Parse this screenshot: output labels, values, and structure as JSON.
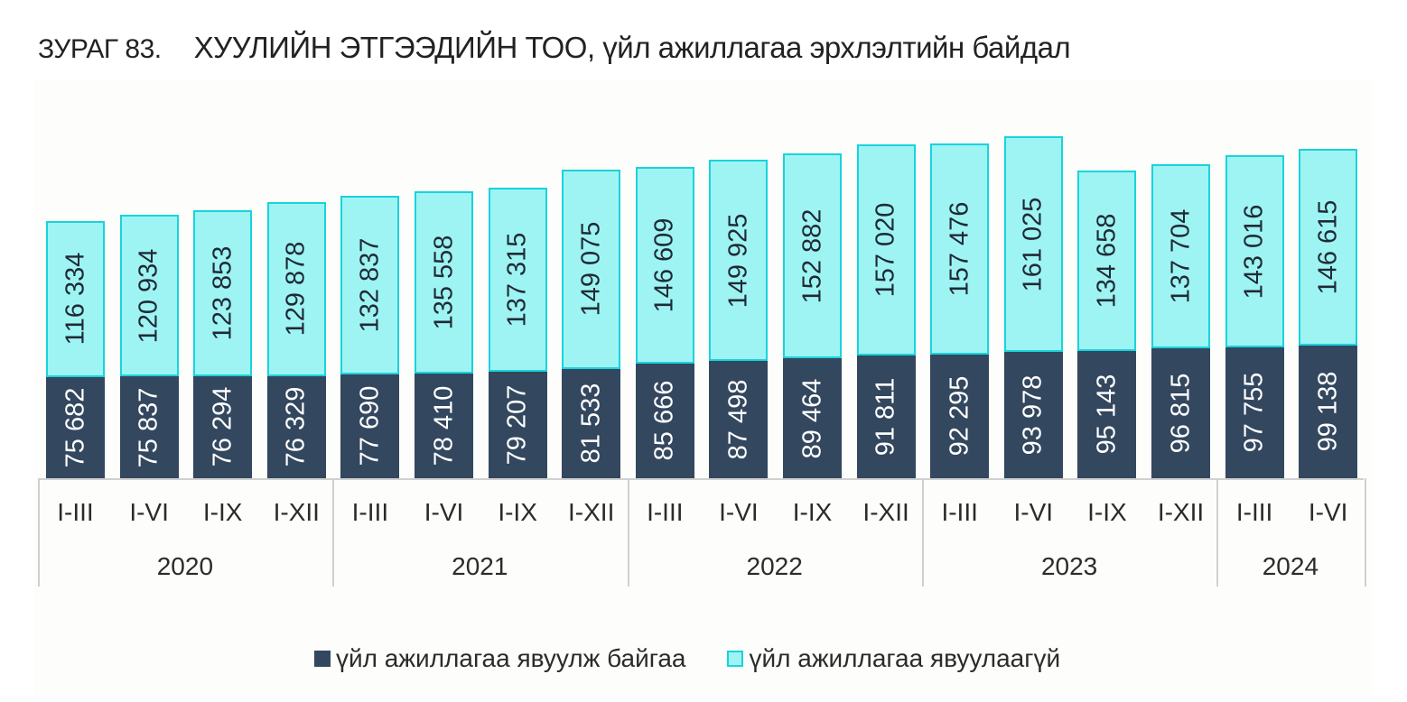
{
  "title": {
    "figure_number": "ЗУРАГ 83.",
    "text": "ХУУЛИЙН ЭТГЭЭДИЙН ТОО, үйл ажиллагаа эрхлэлтийн байдал"
  },
  "legend": [
    {
      "label": "үйл ажиллагаа явуулж байгаа",
      "color": "#33475f"
    },
    {
      "label": "үйл ажиллагаа явуулаагүй",
      "color": "#9ef4f3",
      "border": "#19d3dc"
    }
  ],
  "chart_data": {
    "type": "bar",
    "stacked": true,
    "title": "ХУУЛИЙН ЭТГЭЭДИЙН ТОО, үйл ажиллагаа эрхлэлтийн байдал",
    "xlabel": "",
    "ylabel": "",
    "grid": false,
    "legend_position": "bottom",
    "categories": [
      "2020 I-III",
      "2020 I-VI",
      "2020 I-IX",
      "2020 I-XII",
      "2021 I-III",
      "2021 I-VI",
      "2021 I-IX",
      "2021 I-XII",
      "2022 I-III",
      "2022 I-VI",
      "2022 I-IX",
      "2022 I-XII",
      "2023 I-III",
      "2023 I-VI",
      "2023 I-IX",
      "2023 I-XII",
      "2024 I-III",
      "2024 I-VI"
    ],
    "period_labels": [
      "I-III",
      "I-VI",
      "I-IX",
      "I-XII",
      "I-III",
      "I-VI",
      "I-IX",
      "I-XII",
      "I-III",
      "I-VI",
      "I-IX",
      "I-XII",
      "I-III",
      "I-VI",
      "I-IX",
      "I-XII",
      "I-III",
      "I-VI"
    ],
    "year_groups": [
      {
        "year": "2020",
        "start": 0,
        "count": 4
      },
      {
        "year": "2021",
        "start": 4,
        "count": 4
      },
      {
        "year": "2022",
        "start": 8,
        "count": 4
      },
      {
        "year": "2023",
        "start": 12,
        "count": 4
      },
      {
        "year": "2024",
        "start": 16,
        "count": 2
      }
    ],
    "series": [
      {
        "name": "үйл ажиллагаа явуулж байгаа",
        "color": "#33475f",
        "values": [
          75682,
          75837,
          76294,
          76329,
          77690,
          78410,
          79207,
          81533,
          85666,
          87498,
          89464,
          91811,
          92295,
          93978,
          95143,
          96815,
          97755,
          99138
        ],
        "labels": [
          "75 682",
          "75 837",
          "76 294",
          "76 329",
          "77 690",
          "78 410",
          "79 207",
          "81 533",
          "85 666",
          "87 498",
          "89 464",
          "91 811",
          "92 295",
          "93 978",
          "95 143",
          "96 815",
          "97 755",
          "99 138"
        ]
      },
      {
        "name": "үйл ажиллагаа явуулаагүй",
        "color": "#9ef4f3",
        "values": [
          116334,
          120934,
          123853,
          129878,
          132837,
          135558,
          137315,
          149075,
          146609,
          149925,
          152882,
          157020,
          157476,
          161025,
          134658,
          137704,
          143016,
          146615
        ],
        "labels": [
          "116 334",
          "120 934",
          "123 853",
          "129 878",
          "132 837",
          "135 558",
          "137 315",
          "149 075",
          "146 609",
          "149 925",
          "152 882",
          "157 020",
          "157 476",
          "161 025",
          "134 658",
          "137 704",
          "143 016",
          "146 615"
        ]
      }
    ]
  }
}
